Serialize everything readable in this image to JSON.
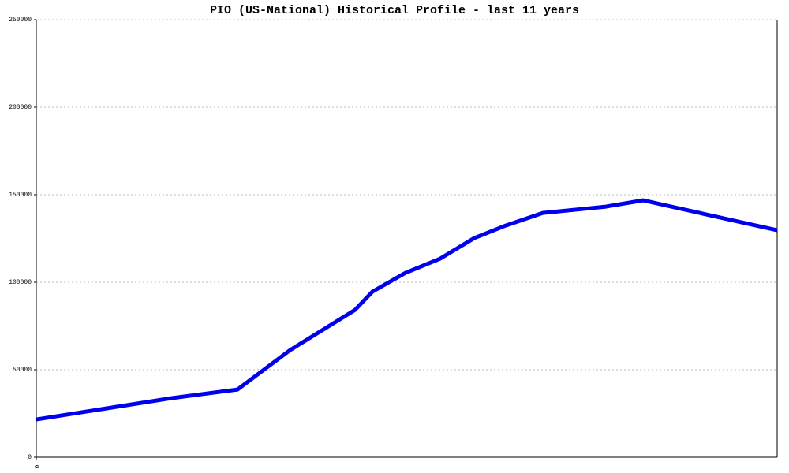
{
  "chart_data": {
    "type": "line",
    "title": "PIO (US-National) Historical Profile - last 11 years",
    "x": [
      0,
      172,
      255,
      322,
      404,
      426,
      468,
      512,
      555,
      595,
      642,
      722,
      769,
      939
    ],
    "series": [
      {
        "name": "PIO",
        "color": "#0000ee",
        "values": [
          21600,
          33800,
          38700,
          61300,
          84200,
          94600,
          105400,
          113500,
          125200,
          132400,
          139600,
          143200,
          146800,
          129700
        ]
      }
    ],
    "xlim": [
      0,
      939
    ],
    "xticks": [
      0
    ],
    "ylim": [
      0,
      250000
    ],
    "yticks": [
      0,
      50000,
      100000,
      150000,
      200000,
      250000
    ],
    "grid": true
  }
}
